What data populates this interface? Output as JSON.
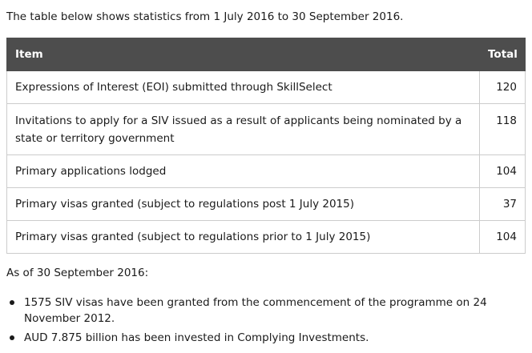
{
  "intro": "The table below shows statistics from 1 July 2016 to 30 September 2016.",
  "table": {
    "headers": {
      "item": "Item",
      "total": "Total"
    },
    "rows": [
      {
        "item": "Expressions of Interest (EOI) submitted through SkillSelect",
        "total": "120"
      },
      {
        "item": "Invitations to apply for a SIV issued as a result of applicants being nominated by a state or territory government",
        "total": "118"
      },
      {
        "item": "Primary applications lodged",
        "total": "104"
      },
      {
        "item": "Primary visas granted (subject to regulations post 1 July 2015)",
        "total": "37"
      },
      {
        "item": "Primary visas granted (subject to regulations prior to 1 July 2015)",
        "total": "104"
      }
    ]
  },
  "as_of": "As of 30 September 2016:",
  "facts": [
    "1575 SIV visas have been granted from the commencement of the programme on 24 November 2012.",
    "AUD 7.875 billion has been invested in Complying Investments."
  ]
}
